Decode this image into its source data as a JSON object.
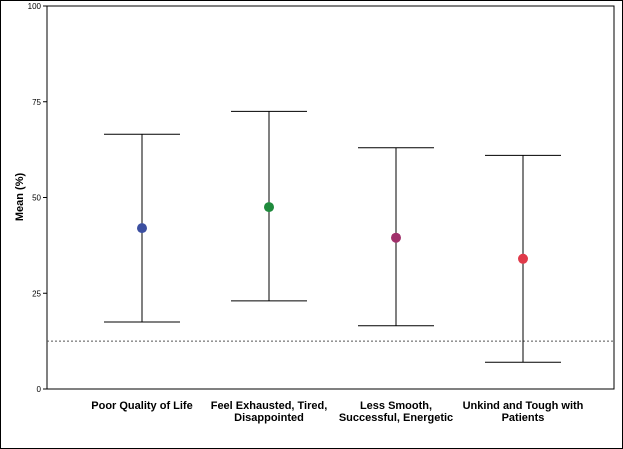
{
  "chart_data": {
    "type": "errorbar",
    "title": "",
    "xlabel": "",
    "ylabel": "Mean (%)",
    "ylim": [
      0,
      100
    ],
    "yticks": [
      "0",
      "25",
      "50",
      "75",
      "100"
    ],
    "categories": [
      [
        "Poor Quality of Life"
      ],
      [
        "Feel Exhausted, Tired,",
        "Disappointed"
      ],
      [
        "Less Smooth,",
        "Successful, Energetic"
      ],
      [
        "Unkind and Tough with",
        "Patients"
      ]
    ],
    "means": [
      42,
      47.5,
      39.5,
      34
    ],
    "lower": [
      17.5,
      23,
      16.5,
      7
    ],
    "upper": [
      66.5,
      72.5,
      63,
      61
    ],
    "point_colors": [
      "#3c4fa0",
      "#1f8a3c",
      "#a0306a",
      "#e03a4a"
    ],
    "reference_line": 12.5,
    "reference_style": "dotted",
    "grid": false
  }
}
